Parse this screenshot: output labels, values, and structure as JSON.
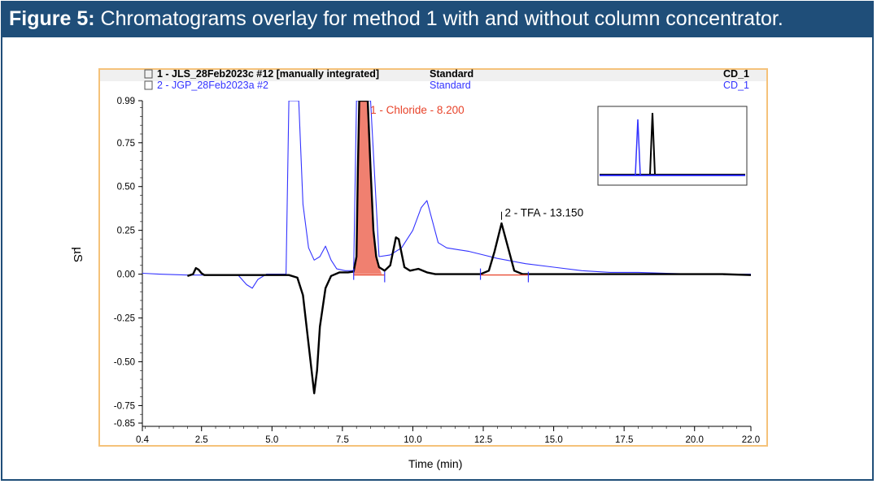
{
  "figure": {
    "label": "Figure 5:",
    "caption": "Chromatograms overlay for method 1 with and without column concentrator."
  },
  "chart_data": {
    "type": "line",
    "xlabel": "Time (min)",
    "ylabel": "µS",
    "xlim": [
      0.4,
      22.0
    ],
    "ylim": [
      -0.85,
      0.99
    ],
    "xticks": [
      "0.4",
      "2.5",
      "5.0",
      "7.5",
      "10.0",
      "12.5",
      "15.0",
      "17.5",
      "20.0",
      "22.0"
    ],
    "xtick_values": [
      0.4,
      2.5,
      5.0,
      7.5,
      10.0,
      12.5,
      15.0,
      17.5,
      20.0,
      22.0
    ],
    "yticks": [
      "0.99",
      "0.75",
      "0.50",
      "0.25",
      "0.00",
      "-0.25",
      "-0.50",
      "-0.75",
      "-0.85"
    ],
    "ytick_values": [
      0.99,
      0.75,
      0.5,
      0.25,
      0.0,
      -0.25,
      -0.5,
      -0.75,
      -0.85
    ],
    "legend": [
      {
        "name": "1 - JLS_28Feb2023c #12 [manually integrated]",
        "type": "Standard",
        "channel": "CD_1",
        "color": "#000000"
      },
      {
        "name": "2 - JGP_28Feb2023a #2",
        "type": "Standard",
        "channel": "CD_1",
        "color": "#3333ff"
      }
    ],
    "annotations": [
      {
        "text": "1 - Chloride - 8.200",
        "x": 8.2,
        "y": 0.99,
        "color": "#e8432a"
      },
      {
        "text": "2 - TFA - 13.150",
        "x": 13.15,
        "y": 0.31,
        "color": "#000000"
      }
    ],
    "series": [
      {
        "name": "1 - JLS_28Feb2023c #12 [manually integrated]",
        "color": "#000000",
        "x": [
          2.0,
          2.1,
          2.2,
          2.3,
          2.4,
          2.5,
          2.6,
          2.8,
          3.0,
          3.5,
          4.0,
          5.0,
          5.6,
          5.9,
          6.1,
          6.3,
          6.5,
          6.6,
          6.7,
          6.9,
          7.1,
          7.4,
          7.7,
          7.9,
          8.0,
          8.05,
          8.1,
          8.2,
          8.3,
          8.4,
          8.5,
          8.6,
          8.7,
          8.8,
          9.0,
          9.2,
          9.4,
          9.5,
          9.7,
          9.9,
          10.2,
          10.5,
          10.8,
          11.2,
          11.8,
          12.4,
          12.7,
          12.9,
          13.15,
          13.4,
          13.6,
          13.9,
          14.2,
          15.0,
          16.0,
          17.0,
          18.0,
          19.0,
          20.0,
          21.0,
          22.0
        ],
        "y": [
          -0.01,
          -0.005,
          0.0,
          0.035,
          0.025,
          0.005,
          -0.005,
          -0.005,
          -0.005,
          -0.005,
          -0.005,
          -0.005,
          -0.005,
          -0.02,
          -0.12,
          -0.4,
          -0.68,
          -0.55,
          -0.3,
          -0.08,
          -0.01,
          0.01,
          0.01,
          0.015,
          0.1,
          0.6,
          0.99,
          0.99,
          0.99,
          0.99,
          0.6,
          0.25,
          0.1,
          0.04,
          0.02,
          0.05,
          0.21,
          0.2,
          0.04,
          0.02,
          0.03,
          0.01,
          0.0,
          0.0,
          0.0,
          0.0,
          0.02,
          0.13,
          0.29,
          0.14,
          0.02,
          0.0,
          0.0,
          0.0,
          0.0,
          0.0,
          0.0,
          0.0,
          0.0,
          0.0,
          -0.005
        ]
      },
      {
        "name": "2 - JGP_28Feb2023a #2",
        "color": "#3333ff",
        "x": [
          0.4,
          1.0,
          2.0,
          3.0,
          3.8,
          4.1,
          4.3,
          4.5,
          4.8,
          5.2,
          5.5,
          5.6,
          5.65,
          5.75,
          5.85,
          5.95,
          6.1,
          6.3,
          6.5,
          6.7,
          6.9,
          7.1,
          7.3,
          7.6,
          7.9,
          8.0,
          8.2,
          8.5,
          8.8,
          9.2,
          9.6,
          10.0,
          10.3,
          10.5,
          10.7,
          10.9,
          11.2,
          11.6,
          12.0,
          12.5,
          13.0,
          14.0,
          15.0,
          16.0,
          17.0,
          18.0,
          19.0,
          20.0,
          21.0,
          22.0
        ],
        "y": [
          0.005,
          0.0,
          -0.005,
          -0.005,
          -0.005,
          -0.06,
          -0.08,
          -0.03,
          0.0,
          0.0,
          0.0,
          0.99,
          0.99,
          0.99,
          0.99,
          0.99,
          0.4,
          0.15,
          0.08,
          0.1,
          0.16,
          0.08,
          0.03,
          0.02,
          0.02,
          0.99,
          0.99,
          0.99,
          0.1,
          0.11,
          0.15,
          0.25,
          0.38,
          0.42,
          0.3,
          0.18,
          0.15,
          0.14,
          0.13,
          0.11,
          0.09,
          0.06,
          0.04,
          0.02,
          0.01,
          0.01,
          0.005,
          0.0,
          0.0,
          0.0
        ]
      }
    ],
    "peak_fill": {
      "name": "1 - Chloride - 8.200",
      "x_start": 7.9,
      "x_end": 8.9,
      "color": "#f08070"
    },
    "baselines": [
      {
        "x_start": 7.9,
        "x_end": 9.0,
        "color": "#e8432a"
      },
      {
        "x_start": 12.4,
        "x_end": 14.1,
        "color": "#e8432a"
      }
    ],
    "grid": false,
    "legend_position": "top",
    "inset": {
      "position": "top-right"
    }
  }
}
